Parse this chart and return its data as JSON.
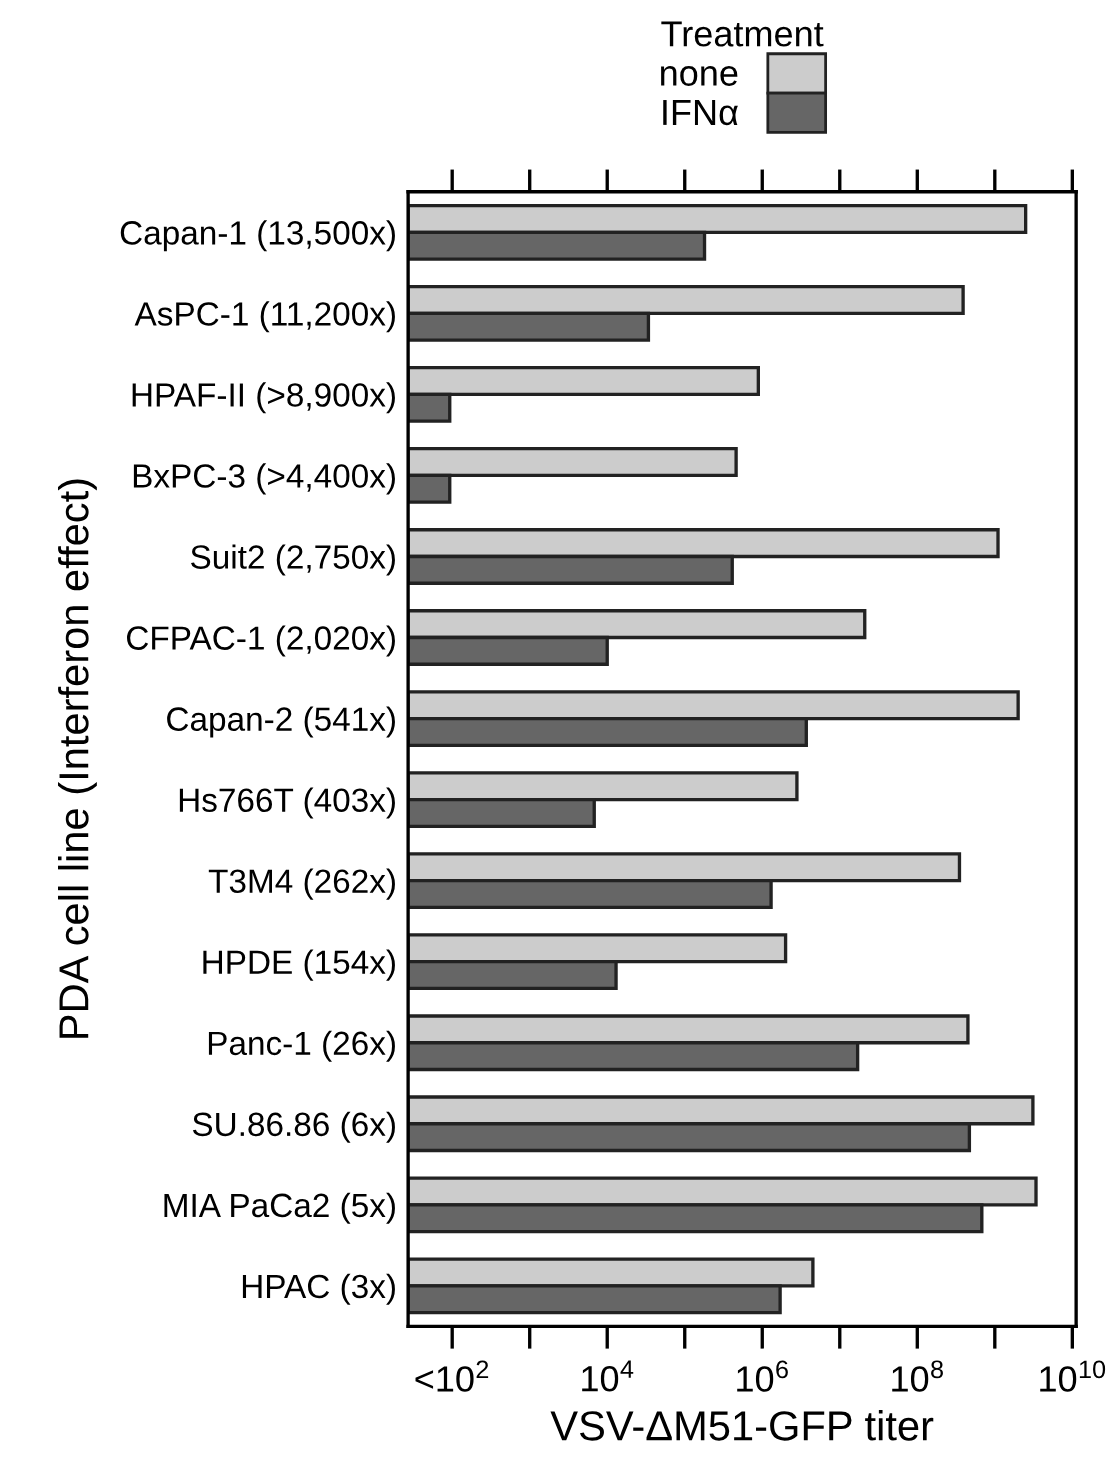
{
  "chart_data": {
    "type": "bar",
    "orientation": "horizontal",
    "log": "x",
    "xlabel": "VSV-ΔM51-GFP titer",
    "ylabel": "PDA cell line (Interferon effect)",
    "legend_title": "Treatment",
    "legend": "top",
    "categories": [
      "Capan-1 (13,500x)",
      "AsPC-1 (11,200x)",
      "HPAF-II (>8,900x)",
      "BxPC-3 (>4,400x)",
      "Suit2 (2,750x)",
      "CFPAC-1 (2,020x)",
      "Capan-2 (541x)",
      "Hs766T (403x)",
      "T3M4 (262x)",
      "HPDE (154x)",
      "Panc-1 (26x)",
      "SU.86.86 (6x)",
      "MIA PaCa2 (5x)",
      "HPAC (3x)"
    ],
    "series": [
      {
        "name": "none",
        "color": "#cccccc",
        "values": [
          2500000000.0,
          390000000.0,
          890000.0,
          460000.0,
          1100000000.0,
          21000000.0,
          2000000000.0,
          2800000.0,
          350000000.0,
          2000000.0,
          450000000.0,
          3100000000.0,
          3400000000.0,
          4500000.0
        ]
      },
      {
        "name": "IFNα",
        "color": "#666666",
        "values": [
          180000.0,
          34000.0,
          93,
          93,
          410000.0,
          10000.0,
          3700000.0,
          6800.0,
          1300000.0,
          13000.0,
          17000000.0,
          470000000.0,
          680000000.0,
          1700000.0
        ]
      }
    ],
    "xlim": [
      27,
      11200000000.0
    ],
    "xticks": [
      {
        "value": 100,
        "label": "<10$^{2}$"
      },
      {
        "value": 1000,
        "label": null
      },
      {
        "value": 10000,
        "label": "10$^{4}$"
      },
      {
        "value": 100000,
        "label": null
      },
      {
        "value": 1000000,
        "label": "10$^{6}$"
      },
      {
        "value": 10000000,
        "label": null
      },
      {
        "value": 100000000,
        "label": "10$^{8}$"
      },
      {
        "value": 1000000000,
        "label": null
      },
      {
        "value": 10000000000,
        "label": "10$^{10}$"
      }
    ],
    "grid": false
  }
}
